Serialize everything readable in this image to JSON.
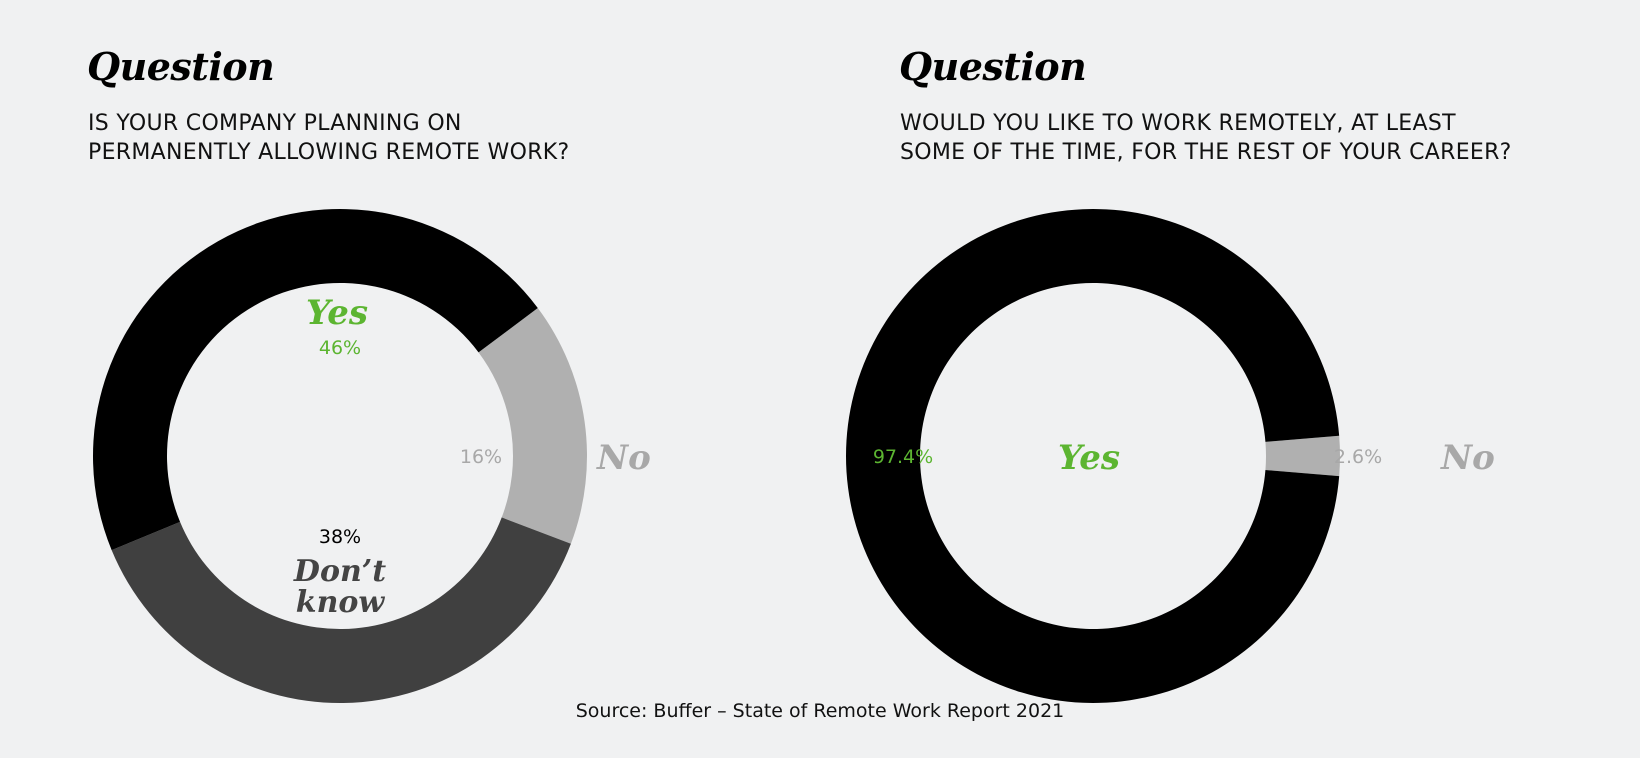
{
  "colors": {
    "background": "#f0f1f2",
    "yes_accent": "#5cb531",
    "no_gray": "#a8a8a8",
    "dont_know": "#414141"
  },
  "chart_data": [
    {
      "type": "pie",
      "style": "donut",
      "heading": "Question",
      "question_lines": [
        "IS YOUR COMPANY PLANNING ON",
        "PERMANENTLY ALLOWING REMOTE WORK?"
      ],
      "slices": [
        {
          "label": "Yes",
          "value": 46,
          "value_label": "46%",
          "color": "#000000",
          "label_color": "#5cb531"
        },
        {
          "label": "No",
          "value": 16,
          "value_label": "16%",
          "color": "#b0b0b0",
          "label_color": "#a8a8a8"
        },
        {
          "label_lines": [
            "Don’t",
            "know"
          ],
          "value": 38,
          "value_label": "38%",
          "color": "#404040",
          "label_color": "#444444"
        }
      ]
    },
    {
      "type": "pie",
      "style": "donut",
      "heading": "Question",
      "question_lines": [
        "WOULD YOU LIKE TO WORK REMOTELY, AT LEAST",
        "SOME OF THE TIME, FOR THE REST OF YOUR CAREER?"
      ],
      "slices": [
        {
          "label": "Yes",
          "value": 97.4,
          "value_label": "97.4%",
          "color": "#000000",
          "label_color": "#5cb531"
        },
        {
          "label": "No",
          "value": 2.6,
          "value_label": "2.6%",
          "color": "#b0b0b0",
          "label_color": "#a8a8a8"
        }
      ]
    }
  ],
  "source": "Source: Buffer – State of Remote Work Report 2021"
}
